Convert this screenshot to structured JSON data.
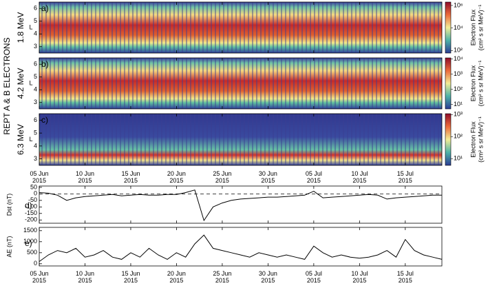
{
  "figure_title": "REPT A & B ELECTRONS",
  "time_axis": {
    "xlim": [
      "2015-06-05",
      "2015-07-19"
    ],
    "xticks": [
      {
        "value": "2015-06-05",
        "label": "05 Jun 2015"
      },
      {
        "value": "2015-06-10",
        "label": "10 Jun 2015"
      },
      {
        "value": "2015-06-15",
        "label": "15 Jun 2015"
      },
      {
        "value": "2015-06-20",
        "label": "20 Jun 2015"
      },
      {
        "value": "2015-06-25",
        "label": "25 Jun 2015"
      },
      {
        "value": "2015-06-30",
        "label": "30 Jun 2015"
      },
      {
        "value": "2015-07-05",
        "label": "05 Jul 2015"
      },
      {
        "value": "2015-07-10",
        "label": "10 Jul 2015"
      },
      {
        "value": "2015-07-15",
        "label": "15 Jul 2015"
      }
    ]
  },
  "chart_data": [
    {
      "type": "spectrogram",
      "panel_label": "a)",
      "energy_label": "1.8 MeV",
      "ylabel": "L",
      "ylim": [
        2.5,
        6.5
      ],
      "yticks": [
        3,
        4,
        5,
        6
      ],
      "colorbar": {
        "label": "Electron Flux",
        "units": "(cm² s sr MeV)⁻¹",
        "log": true,
        "lim": [
          60,
          2000000
        ],
        "ticks": [
          {
            "value": 100,
            "label": "10²"
          },
          {
            "value": 10000,
            "label": "10⁴"
          },
          {
            "value": 1000000,
            "label": "10⁶"
          }
        ]
      }
    },
    {
      "type": "spectrogram",
      "panel_label": "b)",
      "energy_label": "4.2 MeV",
      "ylabel": "L",
      "ylim": [
        2.5,
        6.5
      ],
      "yticks": [
        3,
        4,
        5,
        6
      ],
      "colorbar": {
        "label": "Electron Flux",
        "units": "(cm² s sr MeV)⁻¹",
        "log": true,
        "lim": [
          5,
          12000
        ],
        "ticks": [
          {
            "value": 10,
            "label": "10¹"
          },
          {
            "value": 100,
            "label": "10²"
          },
          {
            "value": 1000,
            "label": "10³"
          },
          {
            "value": 10000,
            "label": "10⁴"
          }
        ]
      }
    },
    {
      "type": "spectrogram",
      "panel_label": "c)",
      "energy_label": "6.3 MeV",
      "ylabel": "L",
      "ylim": [
        2.5,
        6.5
      ],
      "yticks": [
        3,
        4,
        5,
        6
      ],
      "colorbar": {
        "label": "Electron Flux",
        "units": "(cm² s sr MeV)⁻¹",
        "log": true,
        "lim": [
          5,
          1100
        ],
        "ticks": [
          {
            "value": 10,
            "label": "10¹"
          },
          {
            "value": 100,
            "label": "10²"
          },
          {
            "value": 1000,
            "label": "10³"
          }
        ]
      }
    },
    {
      "type": "line",
      "panel_label": "d)",
      "ylabel": "Dst (nT)",
      "ylim": [
        -225,
        60
      ],
      "yticks": [
        50,
        0,
        -50,
        -100,
        -150,
        -200
      ],
      "reference_line": 0,
      "color": "#000000",
      "x": [
        "2015-06-05",
        "2015-06-06",
        "2015-06-07",
        "2015-06-08",
        "2015-06-09",
        "2015-06-10",
        "2015-06-11",
        "2015-06-12",
        "2015-06-13",
        "2015-06-14",
        "2015-06-15",
        "2015-06-16",
        "2015-06-17",
        "2015-06-18",
        "2015-06-19",
        "2015-06-20",
        "2015-06-21",
        "2015-06-22",
        "2015-06-23",
        "2015-06-24",
        "2015-06-25",
        "2015-06-26",
        "2015-06-27",
        "2015-06-28",
        "2015-06-29",
        "2015-06-30",
        "2015-07-01",
        "2015-07-02",
        "2015-07-03",
        "2015-07-04",
        "2015-07-05",
        "2015-07-06",
        "2015-07-07",
        "2015-07-08",
        "2015-07-09",
        "2015-07-10",
        "2015-07-11",
        "2015-07-12",
        "2015-07-13",
        "2015-07-14",
        "2015-07-15",
        "2015-07-16",
        "2015-07-17",
        "2015-07-18",
        "2015-07-19"
      ],
      "values": [
        10,
        5,
        -10,
        -50,
        -30,
        -20,
        -15,
        -10,
        -5,
        -15,
        -10,
        -5,
        -10,
        -10,
        -5,
        -5,
        10,
        30,
        -204,
        -100,
        -70,
        -50,
        -40,
        -35,
        -30,
        -25,
        -25,
        -20,
        -15,
        -10,
        20,
        -30,
        -25,
        -20,
        -15,
        -10,
        -5,
        -10,
        -40,
        -30,
        -25,
        -20,
        -15,
        -10,
        -10
      ]
    },
    {
      "type": "line",
      "panel_label": "e)",
      "ylabel": "AE (nT)",
      "ylim": [
        -100,
        1650
      ],
      "yticks": [
        0,
        500,
        1000,
        1500
      ],
      "color": "#000000",
      "x": [
        "2015-06-05",
        "2015-06-06",
        "2015-06-07",
        "2015-06-08",
        "2015-06-09",
        "2015-06-10",
        "2015-06-11",
        "2015-06-12",
        "2015-06-13",
        "2015-06-14",
        "2015-06-15",
        "2015-06-16",
        "2015-06-17",
        "2015-06-18",
        "2015-06-19",
        "2015-06-20",
        "2015-06-21",
        "2015-06-22",
        "2015-06-23",
        "2015-06-24",
        "2015-06-25",
        "2015-06-26",
        "2015-06-27",
        "2015-06-28",
        "2015-06-29",
        "2015-06-30",
        "2015-07-01",
        "2015-07-02",
        "2015-07-03",
        "2015-07-04",
        "2015-07-05",
        "2015-07-06",
        "2015-07-07",
        "2015-07-08",
        "2015-07-09",
        "2015-07-10",
        "2015-07-11",
        "2015-07-12",
        "2015-07-13",
        "2015-07-14",
        "2015-07-15",
        "2015-07-16",
        "2015-07-17",
        "2015-07-18",
        "2015-07-19"
      ],
      "values": [
        100,
        400,
        600,
        500,
        700,
        300,
        400,
        600,
        300,
        200,
        500,
        300,
        700,
        400,
        200,
        500,
        300,
        900,
        1300,
        700,
        600,
        500,
        400,
        300,
        500,
        400,
        300,
        400,
        300,
        200,
        800,
        500,
        300,
        400,
        300,
        250,
        300,
        400,
        600,
        300,
        1100,
        600,
        400,
        300,
        200
      ]
    }
  ]
}
